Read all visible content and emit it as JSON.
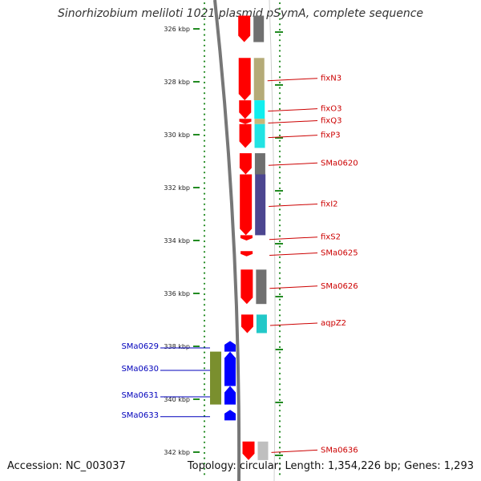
{
  "title": "Sinorhizobium meliloti 1021 plasmid pSymA, complete sequence",
  "footer": {
    "accession": "Accession: NC_003037",
    "summary": "Topology: circular; Length: 1,354,226 bp; Genes: 1,293"
  },
  "scale": {
    "unit": "kbp",
    "tick_labels": [
      "326 kbp",
      "328 kbp",
      "330 kbp",
      "332 kbp",
      "334 kbp",
      "336 kbp",
      "338 kbp",
      "340 kbp",
      "342 kbp"
    ],
    "tick_positions_kbp": [
      326,
      328,
      330,
      332,
      334,
      336,
      338,
      340,
      342
    ]
  },
  "forward_genes": [
    {
      "label": "",
      "start_kbp": 325.5,
      "end_kbp": 326.5,
      "category_color": "#707070"
    },
    {
      "label": "fixN3",
      "start_kbp": 327.1,
      "end_kbp": 328.7,
      "category_color": "#b5ab78"
    },
    {
      "label": "fixO3",
      "start_kbp": 328.7,
      "end_kbp": 329.4,
      "category_color": "#11eeee"
    },
    {
      "label": "fixQ3",
      "start_kbp": 329.4,
      "end_kbp": 329.6,
      "category_color": "#c8b778"
    },
    {
      "label": "fixP3",
      "start_kbp": 329.6,
      "end_kbp": 330.5,
      "category_color": "#22e3e3"
    },
    {
      "label": "SMa0620",
      "start_kbp": 330.7,
      "end_kbp": 331.5,
      "category_color": "#6f6f6f"
    },
    {
      "label": "fixI2",
      "start_kbp": 331.5,
      "end_kbp": 333.8,
      "category_color": "#4c4690"
    },
    {
      "label": "fixS2",
      "start_kbp": 333.8,
      "end_kbp": 334.0,
      "category_color": ""
    },
    {
      "label": "SMa0625",
      "start_kbp": 334.4,
      "end_kbp": 334.6,
      "category_color": ""
    },
    {
      "label": "SMa0626",
      "start_kbp": 335.1,
      "end_kbp": 336.4,
      "category_color": "#707070"
    },
    {
      "label": "aqpZ2",
      "start_kbp": 336.8,
      "end_kbp": 337.5,
      "category_color": "#22c8c8"
    },
    {
      "label": "SMa0636",
      "start_kbp": 341.6,
      "end_kbp": 342.3,
      "category_color": "#bfbfbf"
    }
  ],
  "reverse_genes": [
    {
      "label": "SMa0629",
      "start_kbp": 337.8,
      "end_kbp": 338.2,
      "category_color": ""
    },
    {
      "label": "SMa0630",
      "start_kbp": 338.2,
      "end_kbp": 339.5,
      "category_color": "#7a8f2e"
    },
    {
      "label": "SMa0631",
      "start_kbp": 339.5,
      "end_kbp": 340.2,
      "category_color": "#7a8f2e"
    },
    {
      "label": "SMa0633",
      "start_kbp": 340.4,
      "end_kbp": 340.8,
      "category_color": ""
    }
  ],
  "colors": {
    "forward_strand": "#ff0000",
    "reverse_strand": "#0000ff",
    "forward_label": "#cc0000",
    "reverse_label": "#0000bb",
    "scale_dots": "#228b22",
    "backbone": "#777777"
  }
}
